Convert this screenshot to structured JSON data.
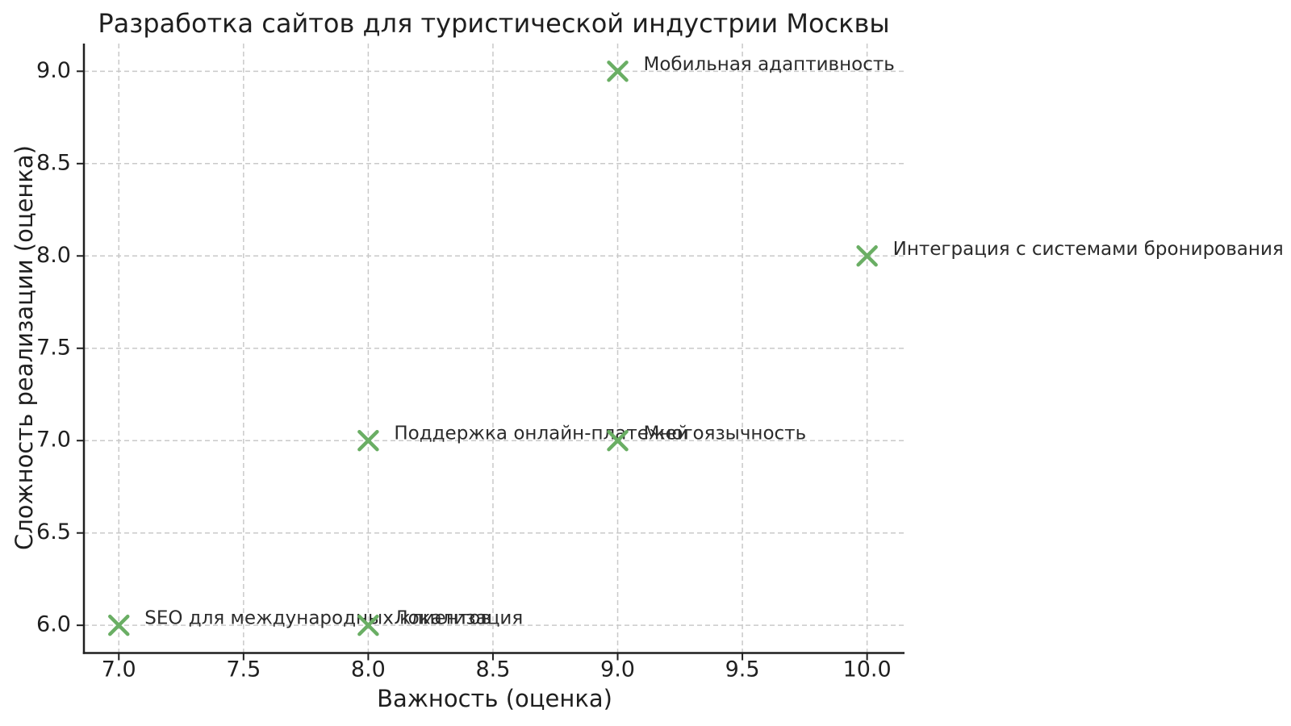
{
  "figure": {
    "background": "#ffffff",
    "marker_color": "#6aae64",
    "grid_color": "#c9c9c9",
    "axis_color": "#1f1f1f",
    "tick_text_color": "#1f1f1f",
    "annotation_color": "#2b2b2b"
  },
  "chart_data": {
    "type": "scatter",
    "title": "Разработка сайтов для туристической индустрии Москвы",
    "xlabel": "Важность (оценка)",
    "ylabel": "Сложность реализации (оценка)",
    "xlim": [
      6.86,
      10.15
    ],
    "ylim": [
      5.85,
      9.15
    ],
    "grid": true,
    "legend": "none",
    "marker": "x",
    "x_ticks": [
      7.0,
      7.5,
      8.0,
      8.5,
      9.0,
      9.5,
      10.0
    ],
    "x_tick_labels": [
      "7.0",
      "7.5",
      "8.0",
      "8.5",
      "9.0",
      "9.5",
      "10.0"
    ],
    "y_ticks": [
      6.0,
      6.5,
      7.0,
      7.5,
      8.0,
      8.5,
      9.0
    ],
    "y_tick_labels": [
      "6.0",
      "6.5",
      "7.0",
      "7.5",
      "8.0",
      "8.5",
      "9.0"
    ],
    "points": [
      {
        "label": "Мобильная адаптивность",
        "x": 9,
        "y": 9
      },
      {
        "label": "Интеграция с системами бронирования",
        "x": 10,
        "y": 8
      },
      {
        "label": "Поддержка онлайн-платежей",
        "x": 8,
        "y": 7
      },
      {
        "label": "Многоязычность",
        "x": 9,
        "y": 7
      },
      {
        "label": "SEO для международных клиентов",
        "x": 7,
        "y": 6
      },
      {
        "label": "Локализация",
        "x": 8,
        "y": 6
      }
    ]
  }
}
